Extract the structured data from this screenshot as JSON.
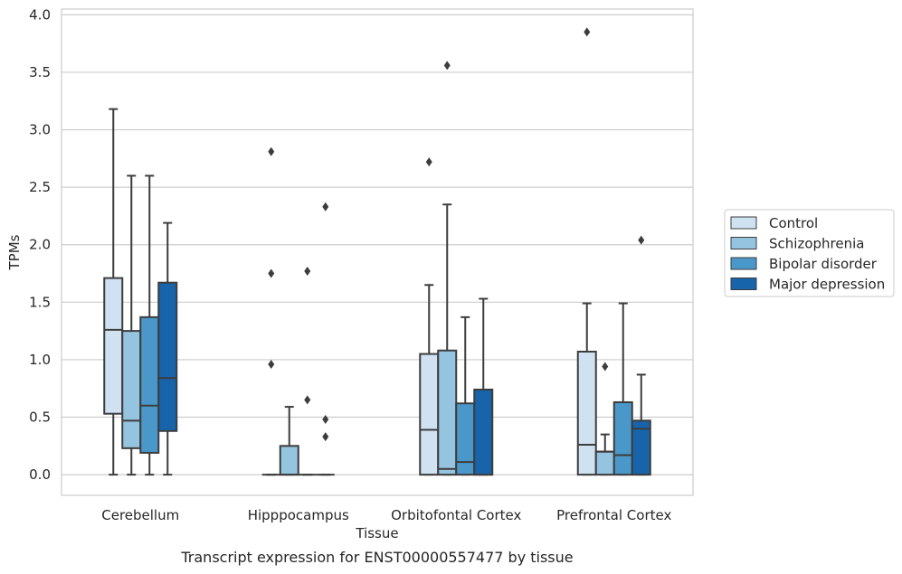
{
  "chart_data": {
    "type": "box",
    "caption": "Transcript expression for ENST00000557477 by tissue",
    "xlabel": "Tissue",
    "ylabel": "TPMs",
    "ylim": [
      -0.18,
      4.05
    ],
    "yticks": [
      0.0,
      0.5,
      1.0,
      1.5,
      2.0,
      2.5,
      3.0,
      3.5,
      4.0
    ],
    "ytick_labels": [
      "0.0",
      "0.5",
      "1.0",
      "1.5",
      "2.0",
      "2.5",
      "3.0",
      "3.5",
      "4.0"
    ],
    "grid": "horizontal",
    "legend_position": "right",
    "categories": [
      "Cerebellum",
      "Hipppocampus",
      "Orbitofontal Cortex",
      "Prefrontal Cortex"
    ],
    "series": [
      {
        "name": "Control",
        "color": "#d0e1f2",
        "boxes": [
          {
            "whislo": 0.0,
            "q1": 0.53,
            "med": 1.26,
            "q3": 1.71,
            "whishi": 3.18,
            "fliers": []
          },
          {
            "whislo": 0.0,
            "q1": 0.0,
            "med": 0.0,
            "q3": 0.0,
            "whishi": 0.0,
            "fliers": [
              0.96,
              1.75,
              2.81
            ]
          },
          {
            "whislo": 0.0,
            "q1": 0.0,
            "med": 0.39,
            "q3": 1.05,
            "whishi": 1.65,
            "fliers": [
              2.72
            ]
          },
          {
            "whislo": 0.0,
            "q1": 0.0,
            "med": 0.26,
            "q3": 1.07,
            "whishi": 1.49,
            "fliers": [
              3.85
            ]
          }
        ]
      },
      {
        "name": "Schizophrenia",
        "color": "#94c4df",
        "boxes": [
          {
            "whislo": 0.0,
            "q1": 0.23,
            "med": 0.47,
            "q3": 1.25,
            "whishi": 2.6,
            "fliers": []
          },
          {
            "whislo": 0.0,
            "q1": 0.0,
            "med": 0.0,
            "q3": 0.25,
            "whishi": 0.59,
            "fliers": []
          },
          {
            "whislo": 0.0,
            "q1": 0.0,
            "med": 0.05,
            "q3": 1.08,
            "whishi": 2.35,
            "fliers": [
              3.56
            ]
          },
          {
            "whislo": 0.0,
            "q1": 0.0,
            "med": 0.2,
            "q3": 0.2,
            "whishi": 0.35,
            "fliers": [
              0.94
            ]
          }
        ]
      },
      {
        "name": "Bipolar disorder",
        "color": "#4a98c9",
        "boxes": [
          {
            "whislo": 0.0,
            "q1": 0.19,
            "med": 0.6,
            "q3": 1.37,
            "whishi": 2.6,
            "fliers": []
          },
          {
            "whislo": 0.0,
            "q1": 0.0,
            "med": 0.0,
            "q3": 0.0,
            "whishi": 0.0,
            "fliers": [
              0.65,
              1.77
            ]
          },
          {
            "whislo": 0.0,
            "q1": 0.0,
            "med": 0.11,
            "q3": 0.62,
            "whishi": 1.37,
            "fliers": []
          },
          {
            "whislo": 0.0,
            "q1": 0.0,
            "med": 0.17,
            "q3": 0.63,
            "whishi": 1.49,
            "fliers": []
          }
        ]
      },
      {
        "name": "Major depression",
        "color": "#1764ab",
        "boxes": [
          {
            "whislo": 0.0,
            "q1": 0.38,
            "med": 0.84,
            "q3": 1.67,
            "whishi": 2.19,
            "fliers": []
          },
          {
            "whislo": 0.0,
            "q1": 0.0,
            "med": 0.0,
            "q3": 0.0,
            "whishi": 0.0,
            "fliers": [
              0.33,
              0.48,
              2.33
            ]
          },
          {
            "whislo": 0.0,
            "q1": 0.0,
            "med": 0.0,
            "q3": 0.74,
            "whishi": 1.53,
            "fliers": []
          },
          {
            "whislo": 0.0,
            "q1": 0.0,
            "med": 0.4,
            "q3": 0.47,
            "whishi": 0.87,
            "fliers": [
              2.04
            ]
          }
        ]
      }
    ]
  }
}
